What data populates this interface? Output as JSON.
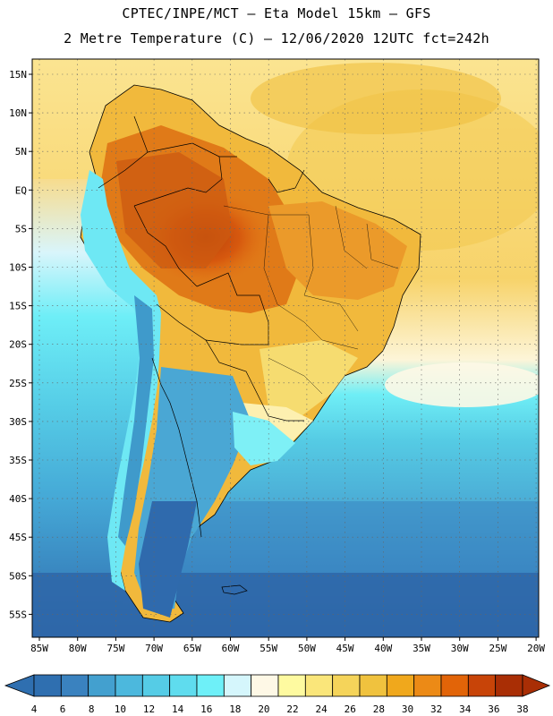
{
  "title_line1": "CPTEC/INPE/MCT –  Eta Model 15km – GFS",
  "title_line2": "2 Metre Temperature (C) – 12/06/2020 12UTC fct=242h",
  "lat_labels": [
    "15N",
    "10N",
    "5N",
    "EQ",
    "5S",
    "10S",
    "15S",
    "20S",
    "25S",
    "30S",
    "35S",
    "40S",
    "45S",
    "50S",
    "55S"
  ],
  "lon_labels": [
    "85W",
    "80W",
    "75W",
    "70W",
    "65W",
    "60W",
    "55W",
    "50W",
    "45W",
    "40W",
    "35W",
    "30W",
    "25W",
    "20W"
  ],
  "colorbar_values": [
    "4",
    "6",
    "8",
    "10",
    "12",
    "14",
    "16",
    "18",
    "20",
    "22",
    "24",
    "26",
    "28",
    "30",
    "32",
    "34",
    "36",
    "38"
  ],
  "colorbar_colors": [
    "#2f6fb0",
    "#3a82bf",
    "#43a0cf",
    "#4cb8dd",
    "#55cce6",
    "#5fdcee",
    "#6ef0f8",
    "#d5f6fc",
    "#fef8e6",
    "#fefaa0",
    "#fae67a",
    "#f5d45a",
    "#f0c23e",
    "#f0a81c",
    "#ec8a16",
    "#e26408",
    "#c84408",
    "#a92e05"
  ]
}
